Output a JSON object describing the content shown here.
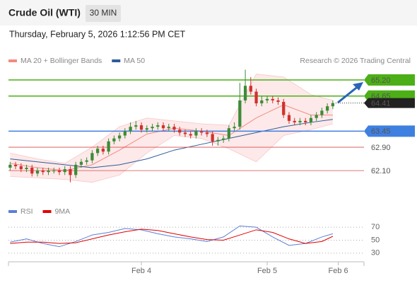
{
  "header": {
    "title": "Crude Oil (WTI)",
    "timeframe": "30 MIN",
    "datetime": "Thursday, February 5, 2026 1:12:56 PM CET"
  },
  "chart_data": [
    {
      "type": "candlestick",
      "legend": [
        {
          "name": "MA 20 + Bollinger Bands",
          "color": "#f28b82"
        },
        {
          "name": "MA 50",
          "color": "#2e5c9a"
        }
      ],
      "credit": "Research © 2026 Trading Central",
      "xlim": [
        -0.3,
        64.7
      ],
      "ylim": [
        61.16,
        66.24
      ],
      "xticks": [
        {
          "value": 24,
          "label": "Feb 4"
        },
        {
          "value": 47,
          "label": "Feb 5"
        },
        {
          "value": 60,
          "label": "Feb 6"
        }
      ],
      "up_color": "#3d8b37",
      "down_color": "#d0312d",
      "open": [
        62.2,
        62.3,
        62.25,
        62.15,
        62.2,
        62.0,
        62.1,
        62.05,
        62.1,
        62.1,
        62.05,
        62.15,
        61.95,
        62.3,
        62.4,
        62.45,
        62.7,
        62.85,
        62.75,
        63.1,
        63.2,
        63.3,
        63.45,
        63.6,
        63.65,
        63.5,
        63.55,
        63.6,
        63.65,
        63.55,
        63.6,
        63.5,
        63.4,
        63.35,
        63.3,
        63.45,
        63.4,
        63.35,
        63.1,
        63.15,
        63.2,
        63.55,
        63.6,
        64.5,
        65.0,
        64.8,
        64.4,
        64.5,
        64.55,
        64.5,
        64.45,
        64.0,
        63.8,
        63.75,
        63.8,
        63.75,
        63.9,
        64.0,
        64.15,
        64.3
      ],
      "high": [
        62.4,
        62.4,
        62.35,
        62.3,
        62.3,
        62.2,
        62.2,
        62.2,
        62.2,
        62.2,
        62.25,
        62.25,
        62.4,
        62.5,
        62.55,
        62.8,
        62.95,
        62.95,
        63.2,
        63.3,
        63.4,
        63.55,
        63.75,
        63.8,
        63.75,
        63.65,
        63.7,
        63.75,
        63.75,
        63.7,
        63.7,
        63.6,
        63.5,
        63.45,
        63.55,
        63.55,
        63.5,
        63.45,
        63.25,
        63.3,
        63.65,
        63.75,
        65.1,
        65.55,
        65.3,
        64.9,
        64.65,
        64.65,
        64.65,
        64.6,
        64.55,
        64.1,
        63.9,
        63.9,
        63.9,
        64.0,
        64.1,
        64.25,
        64.4,
        64.5
      ],
      "low": [
        62.1,
        62.15,
        62.05,
        62.05,
        61.9,
        61.9,
        61.95,
        61.95,
        62.0,
        61.95,
        61.95,
        61.7,
        61.85,
        62.2,
        62.3,
        62.35,
        62.6,
        62.65,
        62.65,
        63.0,
        63.1,
        63.2,
        63.35,
        63.5,
        63.4,
        63.4,
        63.45,
        63.5,
        63.45,
        63.45,
        63.4,
        63.3,
        63.25,
        63.2,
        63.2,
        63.3,
        63.25,
        62.95,
        62.95,
        63.05,
        63.1,
        63.45,
        63.5,
        64.4,
        64.7,
        64.3,
        64.3,
        64.4,
        64.4,
        64.35,
        63.9,
        63.7,
        63.65,
        63.65,
        63.65,
        63.65,
        63.8,
        63.9,
        64.05,
        64.2
      ],
      "close": [
        62.3,
        62.25,
        62.15,
        62.2,
        62.0,
        62.1,
        62.05,
        62.1,
        62.1,
        62.05,
        62.15,
        61.95,
        62.3,
        62.4,
        62.45,
        62.7,
        62.85,
        62.75,
        63.1,
        63.2,
        63.3,
        63.45,
        63.6,
        63.65,
        63.5,
        63.55,
        63.6,
        63.65,
        63.55,
        63.6,
        63.5,
        63.4,
        63.35,
        63.3,
        63.45,
        63.4,
        63.35,
        63.1,
        63.15,
        63.2,
        63.55,
        63.6,
        64.5,
        65.0,
        64.8,
        64.4,
        64.5,
        64.55,
        64.5,
        64.45,
        64.0,
        63.8,
        63.75,
        63.8,
        63.75,
        63.9,
        64.0,
        64.15,
        64.3,
        64.41
      ],
      "ma_x": [
        0,
        5,
        10,
        15,
        20,
        25,
        30,
        35,
        40,
        45,
        50,
        55,
        59
      ],
      "ma20": [
        62.35,
        62.2,
        62.1,
        62.3,
        62.8,
        63.35,
        63.55,
        63.45,
        63.3,
        63.9,
        64.35,
        64.0,
        64.0
      ],
      "band_upper": [
        62.7,
        62.5,
        62.35,
        62.9,
        63.6,
        63.9,
        63.8,
        63.7,
        63.65,
        65.4,
        65.3,
        64.7,
        64.5
      ],
      "band_lower": [
        61.9,
        61.85,
        61.8,
        61.7,
        61.95,
        62.7,
        63.3,
        63.2,
        62.85,
        62.4,
        63.3,
        63.5,
        63.7
      ],
      "ma50": [
        62.5,
        62.4,
        62.3,
        62.2,
        62.3,
        62.5,
        62.8,
        63.0,
        63.2,
        63.4,
        63.6,
        63.75,
        63.85
      ],
      "levels": [
        {
          "value": 65.2,
          "label": "65.20",
          "color": "#4caf17",
          "style": "box"
        },
        {
          "value": 64.65,
          "label": "64.65",
          "color": "#4caf17",
          "style": "box"
        },
        {
          "value": 63.45,
          "label": "63.45",
          "color": "#3f7fe0",
          "style": "box"
        },
        {
          "value": 62.9,
          "label": "62.90",
          "color": "#d94a4a",
          "style": "text"
        },
        {
          "value": 62.1,
          "label": "62.10",
          "color": "#d94a4a",
          "style": "text"
        }
      ],
      "last_price": 64.41
    },
    {
      "type": "line",
      "legend": [
        {
          "name": "RSI",
          "color": "#5b7fd6"
        },
        {
          "name": "9MA",
          "color": "#e00000"
        }
      ],
      "ylim": [
        20,
        80
      ],
      "yticks": [
        30,
        50,
        70
      ],
      "x": [
        0,
        3,
        6,
        9,
        12,
        15,
        18,
        21,
        24,
        27,
        30,
        33,
        36,
        39,
        42,
        45,
        48,
        51,
        54,
        57,
        59
      ],
      "series": [
        {
          "name": "RSI",
          "color": "#5b7fd6",
          "values": [
            47,
            52,
            45,
            40,
            48,
            58,
            62,
            68,
            66,
            60,
            55,
            52,
            48,
            55,
            72,
            70,
            55,
            42,
            45,
            55,
            60
          ]
        },
        {
          "name": "9MA",
          "color": "#e00000",
          "values": [
            45,
            47,
            47,
            45,
            46,
            52,
            58,
            63,
            67,
            65,
            60,
            55,
            51,
            50,
            58,
            66,
            62,
            52,
            45,
            48,
            56
          ]
        }
      ]
    }
  ]
}
